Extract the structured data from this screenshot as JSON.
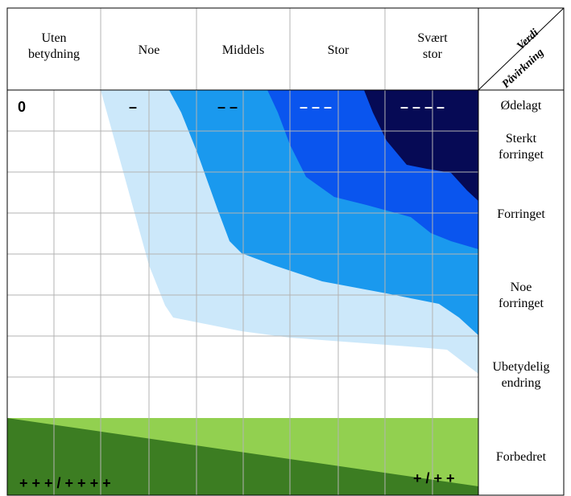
{
  "header": {
    "col_labels": [
      [
        "Uten",
        "betydning"
      ],
      [
        "Noe"
      ],
      [
        "Middels"
      ],
      [
        "Stor"
      ],
      [
        "Svært",
        "stor"
      ]
    ],
    "corner_top": "Verdi",
    "corner_bottom": "Påvirkning"
  },
  "row_labels": {
    "odelagt": "Ødelagt",
    "sterkt": [
      "Sterkt",
      "forringet"
    ],
    "forringet": "Forringet",
    "noe_forringet": [
      "Noe",
      "forringet"
    ],
    "ubetydelig": [
      "Ubetydelig",
      "endring"
    ],
    "forbedret": "Forbedret"
  },
  "markers": {
    "zero": "0",
    "noe": "–",
    "middels": "– –",
    "stor": "– – –",
    "svaert_stor": "– – – –",
    "plus_left": "+ + + / + + + +",
    "plus_right": "+ / + +"
  },
  "colors": {
    "light_blue": "#cce8fa",
    "medium_blue": "#1a99ee",
    "blue": "#0a55ee",
    "dark_navy": "#060a55",
    "light_green": "#92d050",
    "dark_green": "#3c7d22",
    "grid": "#b3b3b3",
    "border": "#000000"
  }
}
